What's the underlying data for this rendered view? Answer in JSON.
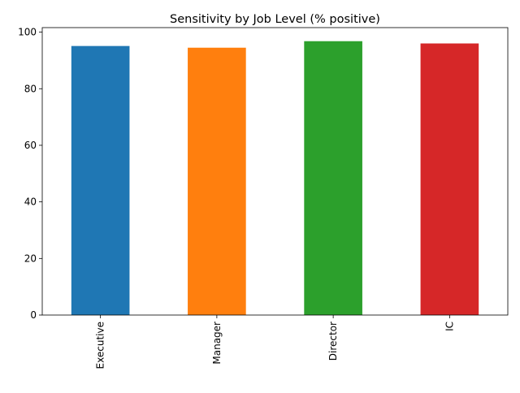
{
  "chart_data": {
    "type": "bar",
    "title": "Sensitivity by Job Level (% positive)",
    "xlabel": "",
    "ylabel": "",
    "categories": [
      "Executive",
      "Manager",
      "Director",
      "IC"
    ],
    "values": [
      95.1,
      94.5,
      96.8,
      96.0
    ],
    "colors": [
      "#1f77b4",
      "#ff7f0e",
      "#2ca02c",
      "#d62728"
    ],
    "ylim": [
      0,
      101.6
    ],
    "yticks": [
      0,
      20,
      40,
      60,
      80,
      100
    ],
    "grid": false,
    "legend": "none",
    "x_tick_rotation": 90
  }
}
